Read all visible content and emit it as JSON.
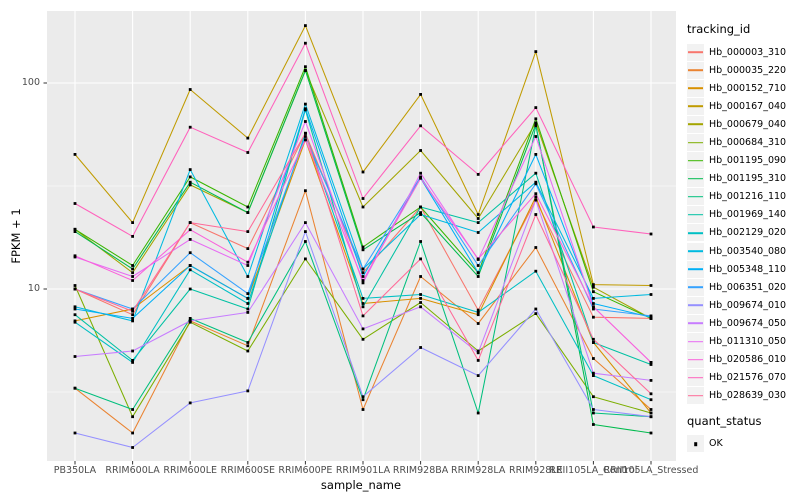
{
  "figure": {
    "background": "#ffffff"
  },
  "chart_data": {
    "type": "line",
    "title": "",
    "x_label": "sample_name",
    "y_label": "FPKM + 1",
    "y_scale": "log10",
    "y_ticks": [
      100,
      10
    ],
    "y_minor_ticks": [
      31.623,
      3.1623
    ],
    "ylim": [
      1.46,
      224
    ],
    "grid": true,
    "legend_position": "right",
    "legend_title": "tracking_id",
    "point_legend": {
      "title": "quant_status",
      "items": [
        "OK"
      ]
    },
    "point_shape": "filled-black-square",
    "categories": [
      "PB350LA",
      "RRIM600LA",
      "RRIM600LE",
      "RRIM600SE",
      "RRIM600PE",
      "RRIM901LA",
      "RRIM928BA",
      "RRIM928LA",
      "RRIM928LE",
      "RRII105LA_Control",
      "RRII105LA_Stressed"
    ],
    "series": [
      {
        "name": "Hb_000003_310",
        "color": "#F8766D",
        "values": [
          10,
          7.5,
          21,
          15.7,
          57,
          12,
          25,
          7.9,
          27,
          7.3,
          7.2
        ]
      },
      {
        "name": "Hb_000035_220",
        "color": "#EA8331",
        "values": [
          3.3,
          2.0,
          7.0,
          5.3,
          30,
          2.6,
          11.5,
          6.8,
          15.9,
          4.6,
          2.6
        ]
      },
      {
        "name": "Hb_000152_710",
        "color": "#D89000",
        "values": [
          7.0,
          8.0,
          13,
          9.0,
          53,
          8.5,
          9.0,
          7.5,
          28,
          5.5,
          2.5
        ]
      },
      {
        "name": "Hb_000167_040",
        "color": "#C09B00",
        "values": [
          45,
          21,
          93,
          54,
          190,
          37,
          88,
          23,
          142,
          10.5,
          10.4
        ]
      },
      {
        "name": "Hb_000679_040",
        "color": "#A3A500",
        "values": [
          19.5,
          12,
          32,
          23.5,
          115,
          25,
          47,
          22,
          64,
          10.2,
          7.2
        ]
      },
      {
        "name": "Hb_000684_310",
        "color": "#7CAE00",
        "values": [
          10.4,
          2.4,
          6.9,
          5.0,
          14,
          5.7,
          8.6,
          5.0,
          7.6,
          3.0,
          2.5
        ]
      },
      {
        "name": "Hb_001195_090",
        "color": "#39B600",
        "values": [
          19.5,
          13,
          35,
          25,
          120,
          16,
          25,
          12,
          67,
          9.7,
          7.2
        ]
      },
      {
        "name": "Hb_001195_310",
        "color": "#00BB4E",
        "values": [
          19,
          12.5,
          33,
          23.5,
          115,
          15.5,
          23.5,
          11.5,
          63,
          2.2,
          2.0
        ]
      },
      {
        "name": "Hb_001216_110",
        "color": "#00BF7D",
        "values": [
          3.3,
          2.6,
          7.2,
          5.5,
          17,
          2.9,
          17,
          2.5,
          62,
          2.5,
          2.4
        ]
      },
      {
        "name": "Hb_001969_140",
        "color": "#00C1A3",
        "values": [
          7.5,
          4.5,
          10,
          8.0,
          74,
          8.2,
          25,
          21,
          36.5,
          5.5,
          4.3
        ]
      },
      {
        "name": "Hb_002129_020",
        "color": "#00BFC4",
        "values": [
          6.9,
          4.4,
          12.4,
          8.5,
          57,
          9.0,
          9.4,
          7.7,
          12.2,
          3.8,
          2.9
        ]
      },
      {
        "name": "Hb_003540_080",
        "color": "#00BAE0",
        "values": [
          8.2,
          7.0,
          38,
          11.5,
          79,
          12.5,
          23,
          18.8,
          33,
          9.0,
          9.4
        ]
      },
      {
        "name": "Hb_005348_110",
        "color": "#00B0F6",
        "values": [
          8.0,
          7.2,
          13,
          9.0,
          75,
          11.5,
          34.5,
          12,
          45,
          8.5,
          7.3
        ]
      },
      {
        "name": "Hb_006351_020",
        "color": "#35A2FF",
        "values": [
          10,
          8.0,
          15,
          9.5,
          55,
          12.5,
          35,
          13,
          32.4,
          8.0,
          7.4
        ]
      },
      {
        "name": "Hb_009674_010",
        "color": "#9590FF",
        "values": [
          2.0,
          1.7,
          2.8,
          3.2,
          19,
          3.0,
          5.2,
          3.8,
          8.0,
          2.6,
          2.4
        ]
      },
      {
        "name": "Hb_009674_050",
        "color": "#C77CFF",
        "values": [
          4.7,
          5.0,
          7.0,
          7.7,
          21,
          6.4,
          8.2,
          4.9,
          27,
          3.9,
          3.6
        ]
      },
      {
        "name": "Hb_011310_050",
        "color": "#E76BF3",
        "values": [
          14.3,
          11.5,
          17.4,
          13,
          65,
          10.7,
          36.5,
          13.9,
          55,
          8.2,
          4.4
        ]
      },
      {
        "name": "Hb_020586_010",
        "color": "#FA62DB",
        "values": [
          14.5,
          11,
          19.4,
          13.5,
          53,
          11,
          34.5,
          14,
          29,
          8.2,
          4.4
        ]
      },
      {
        "name": "Hb_021576_070",
        "color": "#FF62BC",
        "values": [
          26,
          18,
          61,
          46,
          156,
          27.5,
          62,
          36,
          76,
          20,
          18.5
        ]
      },
      {
        "name": "Hb_028639_030",
        "color": "#FF6A98",
        "values": [
          10,
          7.8,
          21,
          19,
          57,
          7.4,
          14,
          4.5,
          23,
          5.7,
          3.1
        ]
      }
    ]
  },
  "colors": {
    "panel_bg": "#EBEBEB",
    "grid_major": "#FFFFFF",
    "grid_minor": "#FFFFFF",
    "tick_text": "#4D4D4D",
    "tick_mark": "#333333",
    "point": "#000000",
    "legend_key_bg": "#F2F2F2"
  }
}
